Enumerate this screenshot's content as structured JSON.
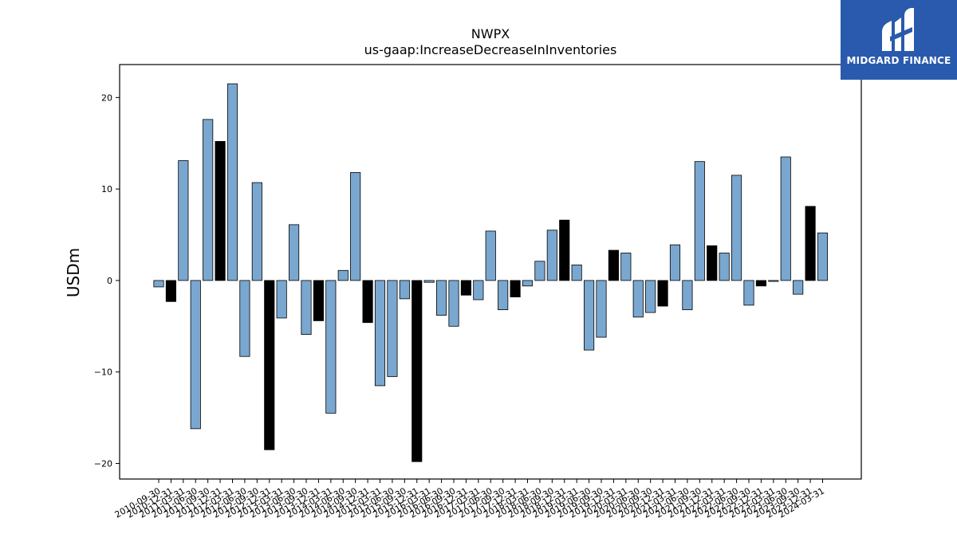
{
  "logo": {
    "brand": "MIDGARD FINANCE",
    "icon": "midgard-logo-icon",
    "background": "#2a5aad"
  },
  "colors": {
    "positive_default": "#7aa7cf",
    "highlight": "#000000",
    "edge": "#000000"
  },
  "chart_data": {
    "type": "bar",
    "title": "NWPX",
    "subtitle": "us-gaap:IncreaseDecreaseInInventories",
    "xlabel": "",
    "ylabel": "USDm",
    "ylim": [
      -21.7,
      23.6
    ],
    "yticks": [
      -20,
      -10,
      0,
      10,
      20
    ],
    "grid": false,
    "legend": "none",
    "categories": [
      "2010-09-30",
      "2010-12-31",
      "2011-03-31",
      "2011-06-30",
      "2011-09-30",
      "2011-12-31",
      "2012-03-31",
      "2012-06-30",
      "2012-09-30",
      "2012-12-31",
      "2013-03-31",
      "2013-06-30",
      "2013-09-30",
      "2013-12-31",
      "2014-03-31",
      "2014-06-30",
      "2014-09-30",
      "2014-12-31",
      "2015-03-31",
      "2015-06-30",
      "2015-09-30",
      "2015-12-31",
      "2016-03-31",
      "2016-06-30",
      "2016-09-30",
      "2016-12-31",
      "2017-03-31",
      "2017-06-30",
      "2017-09-30",
      "2017-12-31",
      "2018-03-31",
      "2018-06-30",
      "2018-09-30",
      "2018-12-31",
      "2019-03-31",
      "2019-06-30",
      "2019-09-30",
      "2019-12-31",
      "2020-03-31",
      "2020-06-30",
      "2020-09-30",
      "2020-12-31",
      "2021-03-31",
      "2021-06-30",
      "2021-09-30",
      "2021-12-31",
      "2022-03-31",
      "2022-06-30",
      "2022-09-30",
      "2022-12-31",
      "2023-03-31",
      "2023-06-30",
      "2023-09-30",
      "2023-12-31",
      "2024-03-31"
    ],
    "values": [
      -0.7,
      -2.3,
      13.1,
      -16.2,
      17.6,
      15.2,
      21.5,
      -8.3,
      10.7,
      -18.5,
      -4.1,
      6.1,
      -5.9,
      -4.4,
      -14.5,
      1.1,
      11.8,
      -4.6,
      -11.5,
      -10.5,
      -2.0,
      -19.8,
      -0.2,
      -3.8,
      -5.0,
      -1.6,
      -2.1,
      5.4,
      -3.2,
      -1.8,
      -0.6,
      2.1,
      5.5,
      6.6,
      1.7,
      -7.6,
      -6.2,
      3.3,
      3.0,
      -4.0,
      -3.5,
      -2.8,
      3.9,
      -3.2,
      13.0,
      3.8,
      3.0,
      11.5,
      -2.7,
      -0.6,
      -0.1,
      13.5,
      -1.5,
      8.1,
      5.2
    ],
    "highlight": [
      false,
      true,
      false,
      false,
      false,
      true,
      false,
      false,
      false,
      true,
      false,
      false,
      false,
      true,
      false,
      false,
      false,
      true,
      false,
      false,
      false,
      true,
      false,
      false,
      false,
      true,
      false,
      false,
      false,
      true,
      false,
      false,
      false,
      true,
      false,
      false,
      false,
      true,
      false,
      false,
      false,
      true,
      false,
      false,
      false,
      true,
      false,
      false,
      false,
      true,
      false,
      false,
      false,
      true,
      false
    ]
  }
}
